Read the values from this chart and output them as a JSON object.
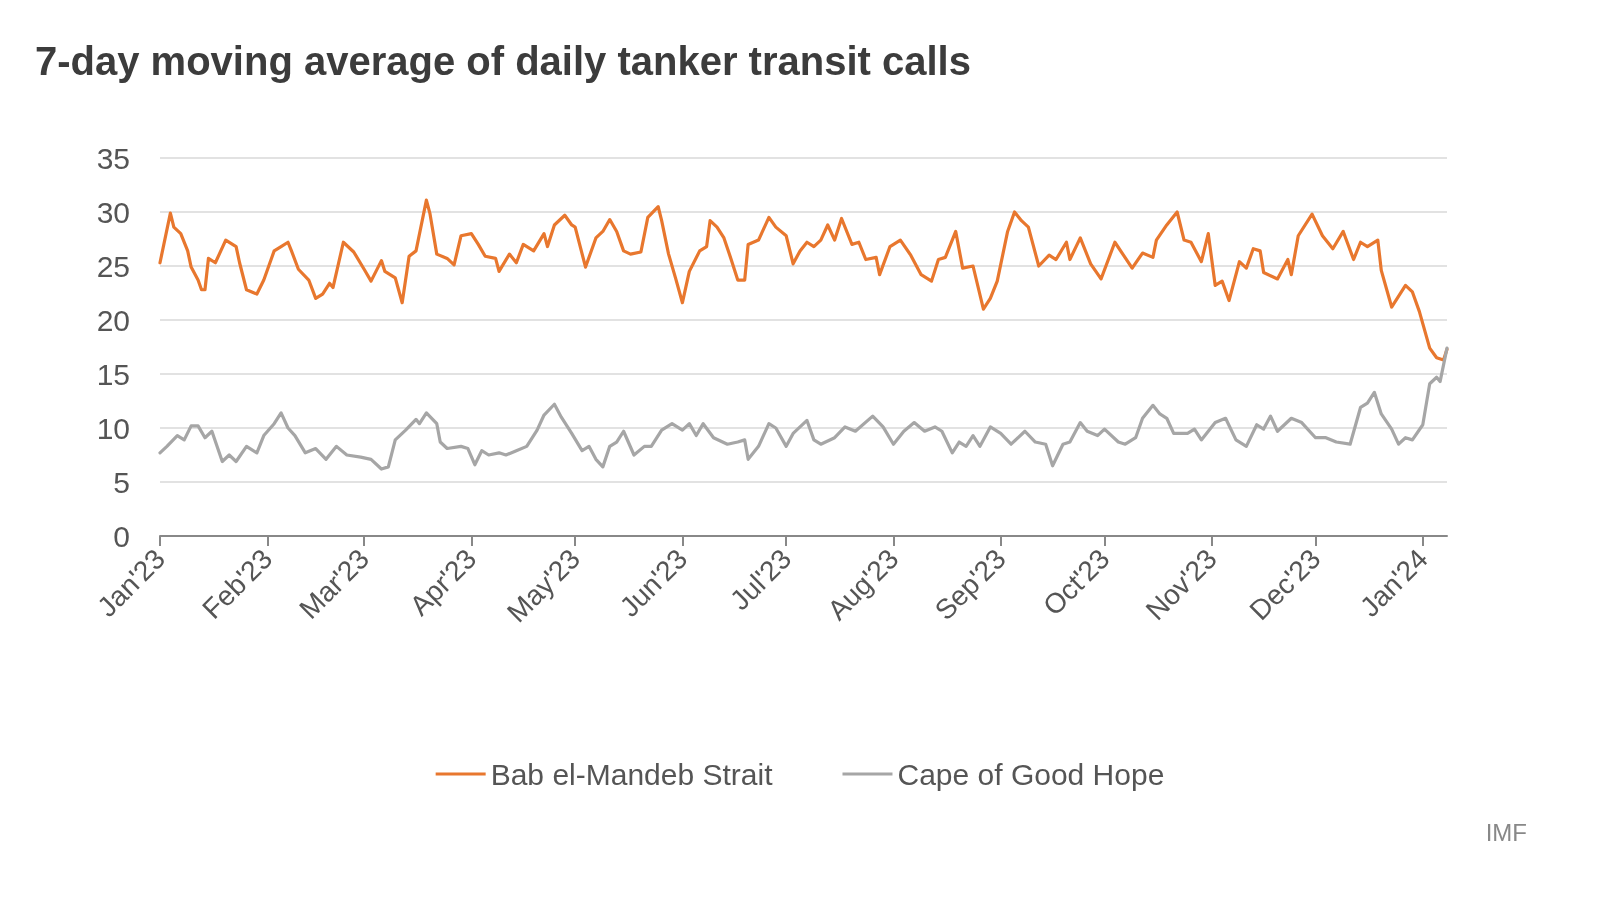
{
  "chart_data": {
    "type": "line",
    "title": "7-day moving average of daily tanker transit calls",
    "xlim": [
      "2023-01-01",
      "2024-01-08"
    ],
    "xticks": [
      {
        "value": "2023-01-01",
        "label": "Jan'23"
      },
      {
        "value": "2023-02-01",
        "label": "Feb'23"
      },
      {
        "value": "2023-03-01",
        "label": "Mar'23"
      },
      {
        "value": "2023-04-01",
        "label": "Apr'23"
      },
      {
        "value": "2023-05-01",
        "label": "May'23"
      },
      {
        "value": "2023-06-01",
        "label": "Jun'23"
      },
      {
        "value": "2023-07-01",
        "label": "Jul'23"
      },
      {
        "value": "2023-08-01",
        "label": "Aug'23"
      },
      {
        "value": "2023-09-01",
        "label": "Sep'23"
      },
      {
        "value": "2023-10-01",
        "label": "Oct'23"
      },
      {
        "value": "2023-11-01",
        "label": "Nov'23"
      },
      {
        "value": "2023-12-01",
        "label": "Dec'23"
      },
      {
        "value": "2024-01-01",
        "label": "Jan'24"
      }
    ],
    "ylim": [
      0,
      35
    ],
    "yticks": [
      0,
      5,
      10,
      15,
      20,
      25,
      30,
      35
    ],
    "grid": "y",
    "legend": "bottom",
    "marker": "none",
    "line_style": "solid",
    "annotations": [
      "IMF"
    ],
    "series": [
      {
        "name": "Bab el-Mandeb Strait",
        "color": "#e8772e",
        "x": [
          "2023-01-01",
          "2023-01-04",
          "2023-01-05",
          "2023-01-07",
          "2023-01-09",
          "2023-01-10",
          "2023-01-12",
          "2023-01-13",
          "2023-01-14",
          "2023-01-15",
          "2023-01-17",
          "2023-01-20",
          "2023-01-23",
          "2023-01-24",
          "2023-01-26",
          "2023-01-29",
          "2023-01-31",
          "2023-02-03",
          "2023-02-05",
          "2023-02-07",
          "2023-02-08",
          "2023-02-10",
          "2023-02-13",
          "2023-02-15",
          "2023-02-17",
          "2023-02-19",
          "2023-02-20",
          "2023-02-23",
          "2023-02-26",
          "2023-03-01",
          "2023-03-03",
          "2023-03-06",
          "2023-03-07",
          "2023-03-10",
          "2023-03-12",
          "2023-03-14",
          "2023-03-16",
          "2023-03-19",
          "2023-03-20",
          "2023-03-22",
          "2023-03-25",
          "2023-03-27",
          "2023-03-29",
          "2023-04-01",
          "2023-04-03",
          "2023-04-05",
          "2023-04-08",
          "2023-04-09",
          "2023-04-12",
          "2023-04-14",
          "2023-04-16",
          "2023-04-19",
          "2023-04-22",
          "2023-04-23",
          "2023-04-25",
          "2023-04-28",
          "2023-04-30",
          "2023-05-01",
          "2023-05-04",
          "2023-05-07",
          "2023-05-09",
          "2023-05-11",
          "2023-05-13",
          "2023-05-15",
          "2023-05-17",
          "2023-05-20",
          "2023-05-22",
          "2023-05-25",
          "2023-05-26",
          "2023-05-28",
          "2023-05-30",
          "2023-06-01",
          "2023-06-03",
          "2023-06-06",
          "2023-06-08",
          "2023-06-09",
          "2023-06-11",
          "2023-06-13",
          "2023-06-15",
          "2023-06-17",
          "2023-06-19",
          "2023-06-20",
          "2023-06-23",
          "2023-06-26",
          "2023-06-28",
          "2023-07-01",
          "2023-07-03",
          "2023-07-05",
          "2023-07-07",
          "2023-07-09",
          "2023-07-11",
          "2023-07-13",
          "2023-07-15",
          "2023-07-17",
          "2023-07-20",
          "2023-07-22",
          "2023-07-24",
          "2023-07-27",
          "2023-07-28",
          "2023-07-31",
          "2023-08-03",
          "2023-08-06",
          "2023-08-09",
          "2023-08-12",
          "2023-08-14",
          "2023-08-16",
          "2023-08-19",
          "2023-08-21",
          "2023-08-24",
          "2023-08-27",
          "2023-08-29",
          "2023-08-31",
          "2023-09-03",
          "2023-09-05",
          "2023-09-07",
          "2023-09-09",
          "2023-09-12",
          "2023-09-15",
          "2023-09-17",
          "2023-09-20",
          "2023-09-21",
          "2023-09-24",
          "2023-09-27",
          "2023-09-30",
          "2023-10-04",
          "2023-10-09",
          "2023-10-12",
          "2023-10-15",
          "2023-10-16",
          "2023-10-19",
          "2023-10-22",
          "2023-10-24",
          "2023-10-26",
          "2023-10-29",
          "2023-10-31",
          "2023-11-02",
          "2023-11-04",
          "2023-11-06",
          "2023-11-09",
          "2023-11-11",
          "2023-11-13",
          "2023-11-15",
          "2023-11-16",
          "2023-11-20",
          "2023-11-23",
          "2023-11-24",
          "2023-11-26",
          "2023-11-30",
          "2023-12-03",
          "2023-12-06",
          "2023-12-09",
          "2023-12-12",
          "2023-12-14",
          "2023-12-16",
          "2023-12-19",
          "2023-12-20",
          "2023-12-23",
          "2023-12-27",
          "2023-12-29",
          "2023-12-31",
          "2024-01-03",
          "2024-01-05",
          "2024-01-07",
          "2024-01-08"
        ],
        "values": [
          25.3,
          29.9,
          28.6,
          28,
          26.4,
          24.9,
          23.7,
          22.8,
          22.8,
          25.7,
          25.3,
          27.4,
          26.8,
          25.3,
          22.8,
          22.4,
          23.7,
          26.4,
          26.8,
          27.2,
          26.4,
          24.7,
          23.7,
          22,
          22.4,
          23.4,
          23,
          27.2,
          26.3,
          24.7,
          23.6,
          25.5,
          24.5,
          23.9,
          21.6,
          25.9,
          26.4,
          31.1,
          29.9,
          26.1,
          25.7,
          25.1,
          27.8,
          28,
          27,
          25.9,
          25.7,
          24.5,
          26.1,
          25.3,
          27,
          26.4,
          28,
          26.8,
          28.8,
          29.7,
          28.8,
          28.6,
          24.9,
          27.6,
          28.2,
          29.3,
          28.2,
          26.4,
          26.1,
          26.3,
          29.5,
          30.5,
          29.2,
          26.1,
          23.9,
          21.6,
          24.5,
          26.4,
          26.8,
          29.2,
          28.6,
          27.6,
          25.7,
          23.7,
          23.7,
          27,
          27.4,
          29.5,
          28.6,
          27.8,
          25.2,
          26.4,
          27.2,
          26.8,
          27.4,
          28.8,
          27.4,
          29.4,
          27,
          27.2,
          25.6,
          25.8,
          24.2,
          26.8,
          27.4,
          26,
          24.2,
          23.6,
          25.6,
          25.8,
          28.2,
          24.8,
          25,
          21,
          22,
          23.6,
          28.2,
          30,
          29.2,
          28.6,
          25,
          26,
          25.6,
          27.2,
          25.6,
          27.6,
          25.2,
          23.8,
          27.2,
          24.8,
          26.2,
          25.8,
          27.4,
          28.8,
          30,
          27.4,
          27.2,
          25.4,
          28,
          23.2,
          23.6,
          21.8,
          25.4,
          24.8,
          26.6,
          26.4,
          24.4,
          23.8,
          25.6,
          24.2,
          27.8,
          29.8,
          27.8,
          26.6,
          28.2,
          25.6,
          27.2,
          26.8,
          27.4,
          24.6,
          21.2,
          23.2,
          22.6,
          20.8,
          17.4,
          16.5,
          16.3,
          17.3
        ]
      },
      {
        "name": "Cape of Good Hope",
        "color": "#a6a6a6",
        "x": [
          "2023-01-01",
          "2023-01-03",
          "2023-01-06",
          "2023-01-08",
          "2023-01-10",
          "2023-01-12",
          "2023-01-14",
          "2023-01-16",
          "2023-01-19",
          "2023-01-21",
          "2023-01-23",
          "2023-01-26",
          "2023-01-29",
          "2023-01-31",
          "2023-02-03",
          "2023-02-05",
          "2023-02-07",
          "2023-02-09",
          "2023-02-12",
          "2023-02-15",
          "2023-02-18",
          "2023-02-21",
          "2023-02-24",
          "2023-02-28",
          "2023-03-03",
          "2023-03-06",
          "2023-03-08",
          "2023-03-10",
          "2023-03-13",
          "2023-03-16",
          "2023-03-17",
          "2023-03-19",
          "2023-03-22",
          "2023-03-23",
          "2023-03-25",
          "2023-03-29",
          "2023-03-31",
          "2023-04-02",
          "2023-04-04",
          "2023-04-06",
          "2023-04-09",
          "2023-04-11",
          "2023-04-14",
          "2023-04-17",
          "2023-04-20",
          "2023-04-22",
          "2023-04-25",
          "2023-04-27",
          "2023-04-30",
          "2023-05-03",
          "2023-05-05",
          "2023-05-07",
          "2023-05-09",
          "2023-05-11",
          "2023-05-13",
          "2023-05-15",
          "2023-05-18",
          "2023-05-21",
          "2023-05-23",
          "2023-05-26",
          "2023-05-29",
          "2023-06-01",
          "2023-06-03",
          "2023-06-05",
          "2023-06-07",
          "2023-06-10",
          "2023-06-14",
          "2023-06-17",
          "2023-06-19",
          "2023-06-20",
          "2023-06-23",
          "2023-06-26",
          "2023-06-28",
          "2023-07-01",
          "2023-07-03",
          "2023-07-07",
          "2023-07-09",
          "2023-07-11",
          "2023-07-15",
          "2023-07-18",
          "2023-07-21",
          "2023-07-26",
          "2023-07-29",
          "2023-08-01",
          "2023-08-04",
          "2023-08-07",
          "2023-08-10",
          "2023-08-13",
          "2023-08-15",
          "2023-08-18",
          "2023-08-20",
          "2023-08-22",
          "2023-08-24",
          "2023-08-26",
          "2023-08-29",
          "2023-09-01",
          "2023-09-04",
          "2023-09-08",
          "2023-09-11",
          "2023-09-14",
          "2023-09-16",
          "2023-09-19",
          "2023-09-21",
          "2023-09-24",
          "2023-09-26",
          "2023-09-29",
          "2023-10-01",
          "2023-10-05",
          "2023-10-07",
          "2023-10-10",
          "2023-10-12",
          "2023-10-15",
          "2023-10-17",
          "2023-10-19",
          "2023-10-21",
          "2023-10-25",
          "2023-10-27",
          "2023-10-29",
          "2023-11-02",
          "2023-11-05",
          "2023-11-08",
          "2023-11-11",
          "2023-11-14",
          "2023-11-16",
          "2023-11-18",
          "2023-11-20",
          "2023-11-24",
          "2023-11-27",
          "2023-12-01",
          "2023-12-04",
          "2023-12-07",
          "2023-12-11",
          "2023-12-14",
          "2023-12-16",
          "2023-12-18",
          "2023-12-20",
          "2023-12-23",
          "2023-12-25",
          "2023-12-27",
          "2023-12-29",
          "2024-01-01",
          "2024-01-03",
          "2024-01-05",
          "2024-01-06",
          "2024-01-08"
        ],
        "values": [
          7.7,
          8.3,
          9.3,
          8.9,
          10.2,
          10.2,
          9.1,
          9.7,
          6.9,
          7.5,
          6.9,
          8.3,
          7.7,
          9.3,
          10.4,
          11.4,
          10,
          9.3,
          7.7,
          8.1,
          7.1,
          8.3,
          7.5,
          7.3,
          7.1,
          6.2,
          6.4,
          8.9,
          9.8,
          10.8,
          10.4,
          11.4,
          10.4,
          8.7,
          8.1,
          8.3,
          8.1,
          6.6,
          7.9,
          7.5,
          7.7,
          7.5,
          7.9,
          8.3,
          9.8,
          11.2,
          12.2,
          11,
          9.5,
          7.9,
          8.3,
          7.1,
          6.4,
          8.3,
          8.7,
          9.7,
          7.5,
          8.3,
          8.3,
          9.8,
          10.4,
          9.8,
          10.4,
          9.3,
          10.4,
          9.1,
          8.5,
          8.7,
          8.9,
          7.1,
          8.3,
          10.4,
          10,
          8.3,
          9.5,
          10.7,
          8.9,
          8.5,
          9.1,
          10.1,
          9.7,
          11.1,
          10.1,
          8.5,
          9.7,
          10.5,
          9.7,
          10.1,
          9.7,
          7.7,
          8.7,
          8.3,
          9.3,
          8.3,
          10.1,
          9.5,
          8.5,
          9.7,
          8.7,
          8.5,
          6.5,
          8.5,
          8.7,
          10.5,
          9.7,
          9.3,
          9.9,
          8.7,
          8.5,
          9.1,
          10.9,
          12.1,
          11.3,
          10.9,
          9.5,
          9.5,
          9.9,
          8.9,
          10.5,
          10.9,
          8.9,
          8.3,
          10.3,
          9.9,
          11.1,
          9.7,
          10.9,
          10.5,
          9.1,
          9.1,
          8.7,
          8.5,
          11.9,
          12.3,
          13.3,
          11.3,
          9.9,
          8.5,
          9.1,
          8.9,
          10.3,
          14.1,
          14.7,
          14.3,
          17.4
        ]
      }
    ]
  }
}
